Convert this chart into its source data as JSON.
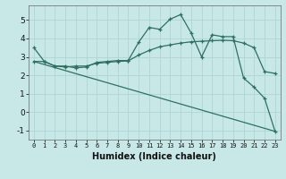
{
  "xlabel": "Humidex (Indice chaleur)",
  "ylabel": "",
  "xlim": [
    -0.5,
    23.5
  ],
  "ylim": [
    -1.5,
    5.8
  ],
  "bg_color": "#c8e8e8",
  "grid_color": "#aed4d4",
  "line_color": "#2e7060",
  "line1_x": [
    0,
    1,
    2,
    3,
    4,
    5,
    6,
    7,
    8,
    9,
    10,
    11,
    12,
    13,
    14,
    15,
    16,
    17,
    18,
    19,
    20,
    21,
    22,
    23
  ],
  "line1_y": [
    3.5,
    2.75,
    2.5,
    2.5,
    2.4,
    2.45,
    2.7,
    2.75,
    2.8,
    2.8,
    3.8,
    4.6,
    4.5,
    5.05,
    5.3,
    4.3,
    3.0,
    4.2,
    4.1,
    4.1,
    1.85,
    1.35,
    0.75,
    -1.05
  ],
  "line1_markers": [
    0,
    1,
    2,
    3,
    4,
    5,
    6,
    7,
    8,
    9,
    10,
    11,
    12,
    13,
    14,
    15,
    16,
    17,
    18,
    19,
    20,
    21,
    22,
    23
  ],
  "line2_x": [
    0,
    1,
    2,
    3,
    4,
    5,
    6,
    7,
    8,
    9,
    10,
    11,
    12,
    13,
    14,
    15,
    16,
    17,
    18,
    19,
    20,
    21,
    22,
    23
  ],
  "line2_y": [
    2.75,
    2.75,
    2.5,
    2.45,
    2.5,
    2.5,
    2.65,
    2.7,
    2.75,
    2.78,
    3.1,
    3.35,
    3.55,
    3.65,
    3.75,
    3.82,
    3.85,
    3.88,
    3.9,
    3.88,
    3.75,
    3.5,
    2.2,
    2.1
  ],
  "line3_x": [
    0,
    23
  ],
  "line3_y": [
    2.75,
    -1.05
  ],
  "xtick_labels": [
    "0",
    "1",
    "2",
    "3",
    "4",
    "5",
    "6",
    "7",
    "8",
    "9",
    "10",
    "11",
    "12",
    "13",
    "14",
    "15",
    "16",
    "17",
    "18",
    "19",
    "20",
    "21",
    "22",
    "23"
  ],
  "ytick_values": [
    -1,
    0,
    1,
    2,
    3,
    4,
    5
  ],
  "marker_style": "+"
}
